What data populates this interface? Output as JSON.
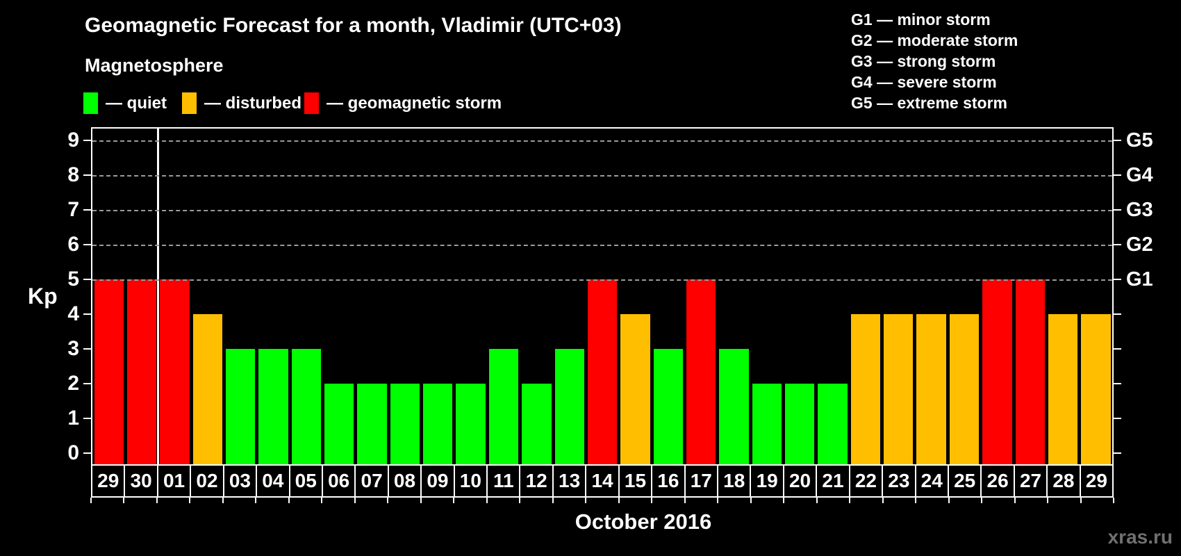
{
  "header": {
    "title": "Geomagnetic Forecast for a month, Vladimir (UTC+03)",
    "subtitle": "Magnetosphere"
  },
  "legend": {
    "items": [
      {
        "key": "quiet",
        "label": "— quiet",
        "color": "#00ff00"
      },
      {
        "key": "disturbed",
        "label": "— disturbed",
        "color": "#ffbf00"
      },
      {
        "key": "storm",
        "label": "— geomagnetic storm",
        "color": "#ff0000"
      }
    ]
  },
  "g_scale_legend": {
    "lines": [
      "G1 — minor storm",
      "G2 — moderate storm",
      "G3 — strong storm",
      "G4 — severe storm",
      "G5 — extreme storm"
    ]
  },
  "watermark": "xras.ru",
  "chart_data": {
    "type": "bar",
    "title": "Geomagnetic Forecast for a month, Vladimir (UTC+03)",
    "xlabel": "October 2016",
    "ylabel": "Kp",
    "ylim": [
      0,
      9
    ],
    "yticks": [
      0,
      1,
      2,
      3,
      4,
      5,
      6,
      7,
      8,
      9
    ],
    "gridlines_at_kp": [
      5,
      6,
      7,
      8,
      9
    ],
    "grid_style": "dashed",
    "legend_position": "top",
    "right_axis": [
      {
        "kp": 5,
        "label": "G1"
      },
      {
        "kp": 6,
        "label": "G2"
      },
      {
        "kp": 7,
        "label": "G3"
      },
      {
        "kp": 8,
        "label": "G4"
      },
      {
        "kp": 9,
        "label": "G5"
      }
    ],
    "status_colors": {
      "quiet": "#00ff00",
      "disturbed": "#ffbf00",
      "storm": "#ff0000"
    },
    "month_separator_after_bar_index": 2,
    "bars": [
      {
        "day": "29",
        "kp": 5,
        "status": "storm"
      },
      {
        "day": "30",
        "kp": 5,
        "status": "storm"
      },
      {
        "day": "01",
        "kp": 5,
        "status": "storm"
      },
      {
        "day": "02",
        "kp": 4,
        "status": "disturbed"
      },
      {
        "day": "03",
        "kp": 3,
        "status": "quiet"
      },
      {
        "day": "04",
        "kp": 3,
        "status": "quiet"
      },
      {
        "day": "05",
        "kp": 3,
        "status": "quiet"
      },
      {
        "day": "06",
        "kp": 2,
        "status": "quiet"
      },
      {
        "day": "07",
        "kp": 2,
        "status": "quiet"
      },
      {
        "day": "08",
        "kp": 2,
        "status": "quiet"
      },
      {
        "day": "09",
        "kp": 2,
        "status": "quiet"
      },
      {
        "day": "10",
        "kp": 2,
        "status": "quiet"
      },
      {
        "day": "11",
        "kp": 3,
        "status": "quiet"
      },
      {
        "day": "12",
        "kp": 2,
        "status": "quiet"
      },
      {
        "day": "13",
        "kp": 3,
        "status": "quiet"
      },
      {
        "day": "14",
        "kp": 5,
        "status": "storm"
      },
      {
        "day": "15",
        "kp": 4,
        "status": "disturbed"
      },
      {
        "day": "16",
        "kp": 3,
        "status": "quiet"
      },
      {
        "day": "17",
        "kp": 5,
        "status": "storm"
      },
      {
        "day": "18",
        "kp": 3,
        "status": "quiet"
      },
      {
        "day": "19",
        "kp": 2,
        "status": "quiet"
      },
      {
        "day": "20",
        "kp": 2,
        "status": "quiet"
      },
      {
        "day": "21",
        "kp": 2,
        "status": "quiet"
      },
      {
        "day": "22",
        "kp": 4,
        "status": "disturbed"
      },
      {
        "day": "23",
        "kp": 4,
        "status": "disturbed"
      },
      {
        "day": "24",
        "kp": 4,
        "status": "disturbed"
      },
      {
        "day": "25",
        "kp": 4,
        "status": "disturbed"
      },
      {
        "day": "26",
        "kp": 5,
        "status": "storm"
      },
      {
        "day": "27",
        "kp": 5,
        "status": "storm"
      },
      {
        "day": "28",
        "kp": 4,
        "status": "disturbed"
      },
      {
        "day": "29",
        "kp": 4,
        "status": "disturbed"
      }
    ]
  }
}
